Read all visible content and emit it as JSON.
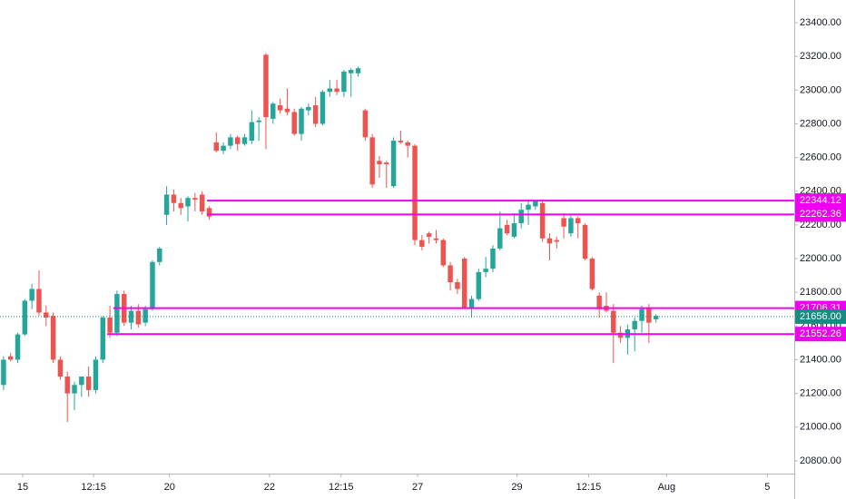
{
  "chart_data": {
    "type": "candlestick",
    "up_color": "#26a69a",
    "down_color": "#ef5350",
    "level_color": "#f000f0",
    "last_color": "#1b8a80",
    "xlim": [
      -0.5,
      111.5
    ],
    "ylim": [
      20724,
      23535
    ],
    "xticks": [
      {
        "value": 2.7,
        "label": "15"
      },
      {
        "value": 12.7,
        "label": "12:15"
      },
      {
        "value": 23.4,
        "label": "20"
      },
      {
        "value": 37.5,
        "label": "22"
      },
      {
        "value": 47.6,
        "label": "12:15"
      },
      {
        "value": 58.4,
        "label": "27"
      },
      {
        "value": 72.4,
        "label": "29"
      },
      {
        "value": 82.5,
        "label": "12:15"
      },
      {
        "value": 93.5,
        "label": "Aug"
      },
      {
        "value": 107.7,
        "label": "5"
      }
    ],
    "yticks": [
      {
        "value": 20800,
        "label": "20800.00"
      },
      {
        "value": 21000,
        "label": "21000.00"
      },
      {
        "value": 21200,
        "label": "21200.00"
      },
      {
        "value": 21400,
        "label": "21400.00"
      },
      {
        "value": 21600,
        "label": "21600.00"
      },
      {
        "value": 21800,
        "label": "21800.00"
      },
      {
        "value": 22000,
        "label": "22000.00"
      },
      {
        "value": 22200,
        "label": "22200.00"
      },
      {
        "value": 22400,
        "label": "22400.00"
      },
      {
        "value": 22600,
        "label": "22600.00"
      },
      {
        "value": 22800,
        "label": "22800.00"
      },
      {
        "value": 23000,
        "label": "23000.00"
      },
      {
        "value": 23200,
        "label": "23200.00"
      },
      {
        "value": 23400,
        "label": "23400.00"
      }
    ],
    "ohlc": [
      [
        21250,
        21420,
        21220,
        21400
      ],
      [
        21420,
        21440,
        21390,
        21400
      ],
      [
        21400,
        21560,
        21380,
        21550
      ],
      [
        21550,
        21760,
        21540,
        21750
      ],
      [
        21750,
        21850,
        21700,
        21820
      ],
      [
        21820,
        21930,
        21660,
        21680
      ],
      [
        21680,
        21720,
        21600,
        21650
      ],
      [
        21660,
        21680,
        21380,
        21400
      ],
      [
        21400,
        21420,
        21280,
        21300
      ],
      [
        21300,
        21330,
        21030,
        21200
      ],
      [
        21200,
        21270,
        21100,
        21250
      ],
      [
        21250,
        21300,
        21180,
        21300
      ],
      [
        21300,
        21360,
        21180,
        21220
      ],
      [
        21220,
        21420,
        21200,
        21400
      ],
      [
        21400,
        21660,
        21380,
        21650
      ],
      [
        21650,
        21720,
        21530,
        21560
      ],
      [
        21560,
        21810,
        21540,
        21790
      ],
      [
        21790,
        21810,
        21600,
        21620
      ],
      [
        21620,
        21720,
        21580,
        21690
      ],
      [
        21690,
        21730,
        21590,
        21610
      ],
      [
        21620,
        21720,
        21600,
        21700
      ],
      [
        21700,
        21990,
        21690,
        21980
      ],
      [
        21980,
        22070,
        21960,
        22060
      ],
      [
        22260,
        22430,
        22200,
        22380
      ],
      [
        22380,
        22410,
        22280,
        22330
      ],
      [
        22330,
        22360,
        22260,
        22300
      ],
      [
        22310,
        22370,
        22220,
        22360
      ],
      [
        22360,
        22390,
        22280,
        22350
      ],
      [
        22380,
        22400,
        22260,
        22280
      ],
      [
        22300,
        22310,
        22230,
        22250
      ],
      [
        22690,
        22750,
        22630,
        22640
      ],
      [
        22640,
        22690,
        22620,
        22670
      ],
      [
        22670,
        22740,
        22650,
        22720
      ],
      [
        22720,
        22730,
        22640,
        22680
      ],
      [
        22680,
        22740,
        22670,
        22720
      ],
      [
        22700,
        22880,
        22680,
        22810
      ],
      [
        22810,
        22840,
        22700,
        22820
      ],
      [
        23210,
        23220,
        22650,
        22840
      ],
      [
        22830,
        22930,
        22800,
        22920
      ],
      [
        22910,
        22950,
        22860,
        22880
      ],
      [
        22890,
        23010,
        22850,
        22870
      ],
      [
        22870,
        22890,
        22730,
        22740
      ],
      [
        22740,
        22900,
        22700,
        22890
      ],
      [
        22880,
        22920,
        22850,
        22900
      ],
      [
        22910,
        22960,
        22780,
        22800
      ],
      [
        22800,
        23000,
        22790,
        22990
      ],
      [
        22990,
        23060,
        22960,
        23010
      ],
      [
        23010,
        23060,
        22970,
        22990
      ],
      [
        22990,
        23120,
        22960,
        23110
      ],
      [
        23100,
        23130,
        22960,
        23120
      ],
      [
        23100,
        23140,
        23080,
        23130
      ],
      [
        22880,
        22890,
        22700,
        22720
      ],
      [
        22720,
        22740,
        22420,
        22440
      ],
      [
        22580,
        22610,
        22480,
        22560
      ],
      [
        22570,
        22580,
        22420,
        22560
      ],
      [
        22430,
        22720,
        22420,
        22700
      ],
      [
        22700,
        22760,
        22680,
        22690
      ],
      [
        22690,
        22700,
        22600,
        22670
      ],
      [
        22670,
        22680,
        22080,
        22110
      ],
      [
        22110,
        22140,
        22050,
        22070
      ],
      [
        22150,
        22160,
        22090,
        22130
      ],
      [
        22120,
        22170,
        22090,
        22110
      ],
      [
        22110,
        22120,
        21950,
        21960
      ],
      [
        21960,
        21980,
        21810,
        21860
      ],
      [
        21860,
        21880,
        21790,
        21820
      ],
      [
        22000,
        22010,
        21700,
        21710
      ],
      [
        21710,
        21780,
        21650,
        21760
      ],
      [
        21760,
        21940,
        21750,
        21920
      ],
      [
        21920,
        22010,
        21890,
        21940
      ],
      [
        21940,
        22080,
        21920,
        22060
      ],
      [
        22060,
        22280,
        22050,
        22180
      ],
      [
        22200,
        22230,
        22140,
        22150
      ],
      [
        22130,
        22270,
        22120,
        22210
      ],
      [
        22210,
        22330,
        22180,
        22290
      ],
      [
        22290,
        22350,
        22200,
        22320
      ],
      [
        22310,
        22350,
        22290,
        22340
      ],
      [
        22330,
        22340,
        22100,
        22120
      ],
      [
        22120,
        22150,
        21990,
        22090
      ],
      [
        22110,
        22130,
        22060,
        22100
      ],
      [
        22240,
        22270,
        22120,
        22190
      ],
      [
        22150,
        22260,
        22130,
        22240
      ],
      [
        22240,
        22250,
        22120,
        22210
      ],
      [
        22200,
        22210,
        21990,
        22000
      ],
      [
        22000,
        22010,
        21810,
        21820
      ],
      [
        21780,
        21800,
        21650,
        21700
      ],
      [
        21720,
        21800,
        21680,
        21690
      ],
      [
        21690,
        21730,
        21380,
        21560
      ],
      [
        21560,
        21600,
        21500,
        21530
      ],
      [
        21530,
        21610,
        21430,
        21580
      ],
      [
        21580,
        21650,
        21450,
        21630
      ],
      [
        21630,
        21720,
        21560,
        21700
      ],
      [
        21710,
        21730,
        21500,
        21620
      ],
      [
        21640,
        21670,
        21620,
        21660
      ]
    ],
    "levels": [
      {
        "value": 22344.12,
        "from": 28.7
      },
      {
        "value": 22262.36,
        "from": 28.7
      },
      {
        "value": 21706.31,
        "from": 15.5
      },
      {
        "value": 21552.26,
        "from": 14.6
      }
    ],
    "last_price": {
      "value": 21656,
      "label": "21656.00"
    }
  }
}
